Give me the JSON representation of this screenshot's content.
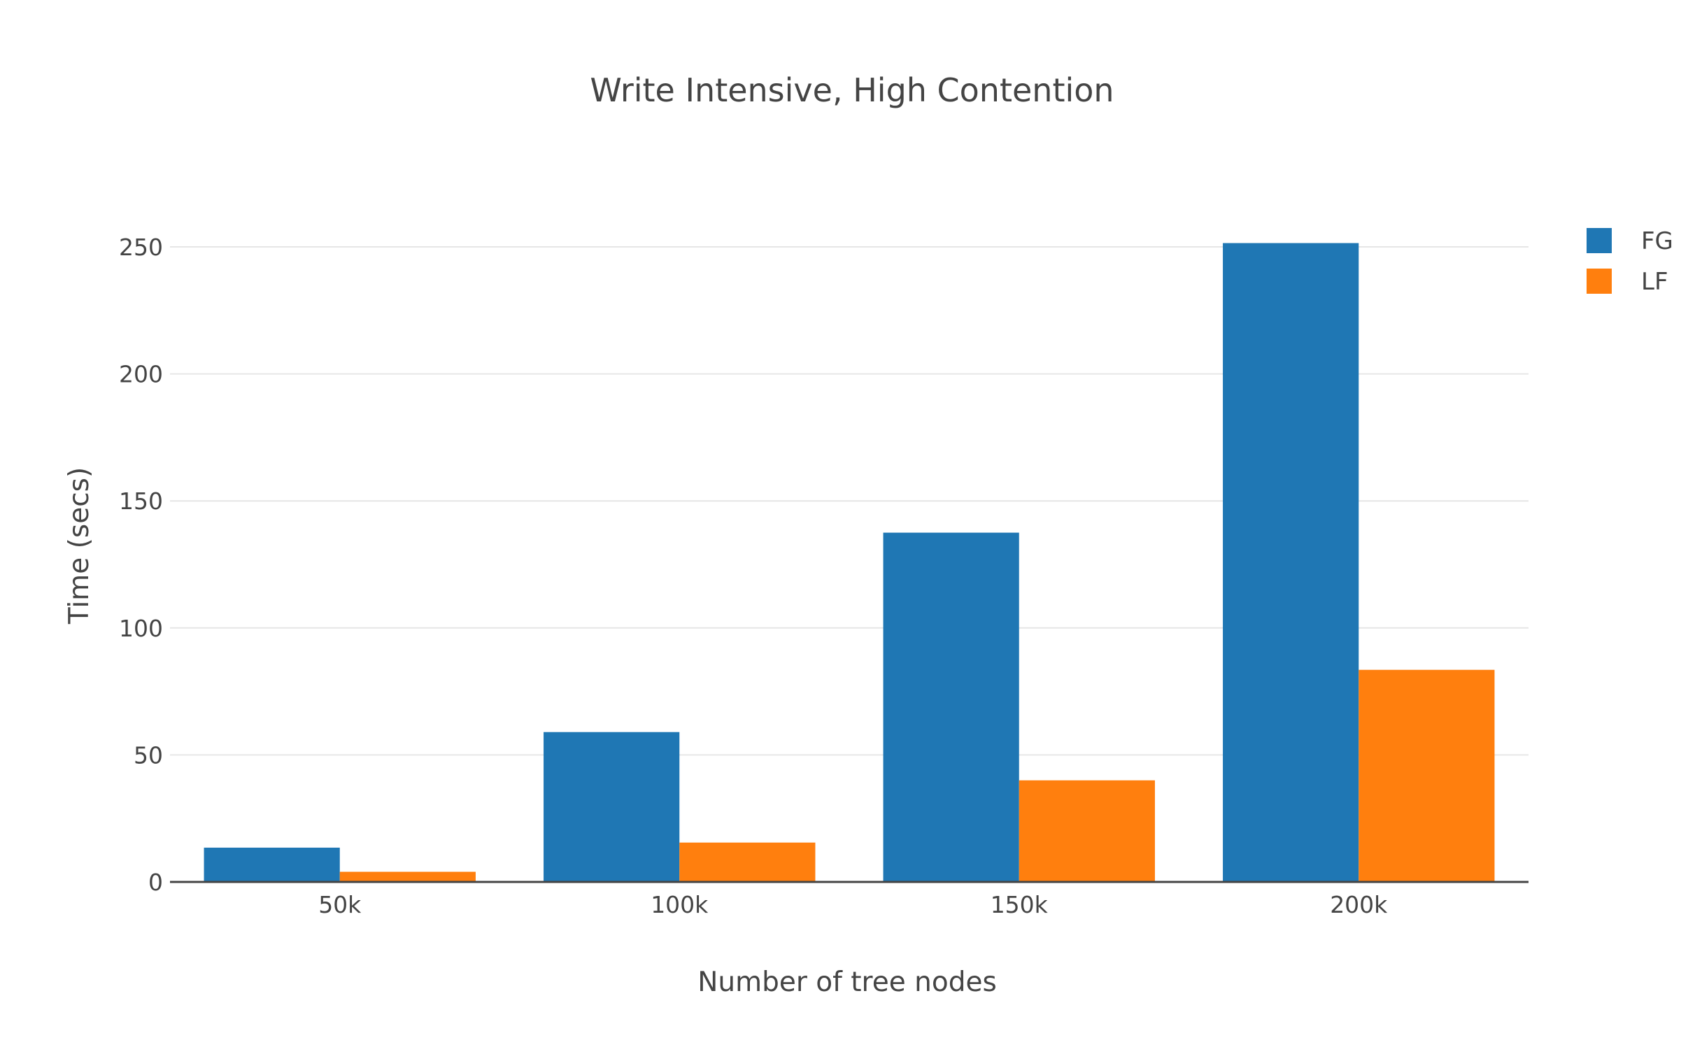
{
  "chart_data": {
    "type": "bar",
    "title": "Write Intensive, High Contention",
    "xlabel": "Number of tree nodes",
    "ylabel": "Time (secs)",
    "categories": [
      "50k",
      "100k",
      "150k",
      "200k"
    ],
    "series": [
      {
        "name": "FG",
        "color": "#1f77b4",
        "values": [
          13.5,
          59,
          137.5,
          251.5
        ]
      },
      {
        "name": "LF",
        "color": "#ff7f0e",
        "values": [
          4,
          15.5,
          40,
          83.5
        ]
      }
    ],
    "ylim": [
      0,
      270
    ],
    "yticks": [
      0,
      50,
      100,
      150,
      200,
      250
    ],
    "ytick_labels": [
      "0",
      "50",
      "100",
      "150",
      "200",
      "250"
    ],
    "grid": true,
    "legend_position": "top-right"
  }
}
